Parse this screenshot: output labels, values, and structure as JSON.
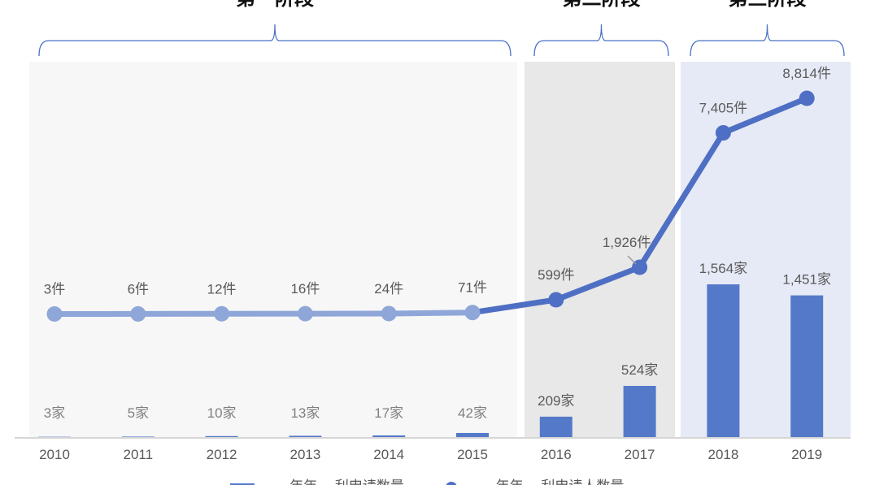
{
  "chart_data": {
    "type": "bar+line",
    "categories": [
      "2010",
      "2011",
      "2012",
      "2013",
      "2014",
      "2015",
      "2016",
      "2017",
      "2018",
      "2019"
    ],
    "phases": [
      {
        "label": "第一阶段",
        "from": "2010",
        "to": "2015",
        "color": "#f7f7f7"
      },
      {
        "label": "第二阶段",
        "from": "2016",
        "to": "2017",
        "color": "#e8e8e8"
      },
      {
        "label": "第三阶段",
        "from": "2018",
        "to": "2019",
        "color": "#e6eaf6"
      }
    ],
    "series": [
      {
        "kind": "bar",
        "values": [
          3,
          5,
          10,
          13,
          17,
          42,
          209,
          524,
          1564,
          1451
        ],
        "labels": [
          "3家",
          "5家",
          "10家",
          "13家",
          "17家",
          "42家",
          "209家",
          "524家",
          "1,564家",
          "1,451家"
        ],
        "color": "#5479c9"
      },
      {
        "kind": "line",
        "values": [
          3,
          6,
          12,
          16,
          24,
          71,
          599,
          1926,
          7405,
          8814
        ],
        "labels": [
          "3件",
          "6件",
          "12件",
          "16件",
          "24件",
          "71件",
          "599件",
          "1,926件",
          "7,405件",
          "8,814件"
        ],
        "color": "#4f6fc4",
        "color_early": "#8ea6d8"
      }
    ],
    "legend": {
      "position": "bottom",
      "entries": [
        "…年年… 利申请数量",
        "…年年… 利申请人数量"
      ]
    },
    "grid": false
  }
}
